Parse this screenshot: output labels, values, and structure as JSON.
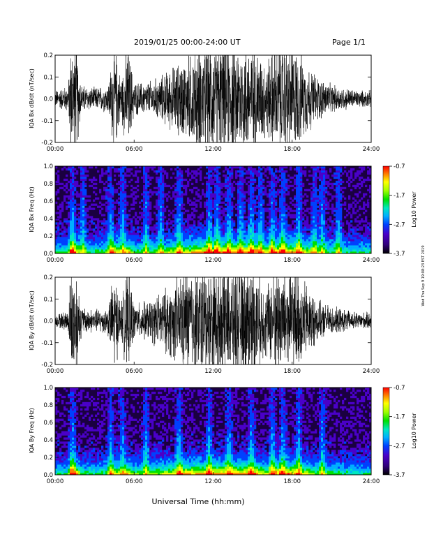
{
  "header": {
    "date_range": "2019/01/25  00:00-24:00 UT",
    "page": "Page 1/1"
  },
  "x_axis_title": "Universal Time (hh:mm)",
  "side_note": "Wed Thu Sep 9 19:08:23 EST 2019",
  "colors": {
    "colormap": [
      "#000000",
      "#30007a",
      "#4a00c8",
      "#0040ff",
      "#00b0ff",
      "#00e8c0",
      "#00e000",
      "#a0ff00",
      "#ffff00",
      "#ff8000",
      "#ff0000"
    ],
    "waveform": "#000000"
  },
  "chart_data": [
    {
      "type": "line",
      "name": "bx-waveform",
      "ylabel": "IQA Bx dB/dt (nT/sec)",
      "ylim": [
        -0.2,
        0.2
      ],
      "yticks": [
        "-0.2",
        "-0.1",
        "0.0",
        "0.1",
        "0.2"
      ],
      "xlim": [
        0,
        24
      ],
      "xticks": [
        "00:00",
        "06:00",
        "12:00",
        "18:00",
        "24:00"
      ],
      "envelope": {
        "hours": [
          0,
          1,
          1.2,
          1.6,
          2,
          3,
          4,
          4.5,
          5,
          5.5,
          6,
          7,
          8,
          9,
          10,
          11,
          12,
          13,
          14,
          15,
          16,
          17,
          18,
          19,
          20,
          21,
          22,
          23,
          24
        ],
        "amplitude": [
          0.03,
          0.05,
          0.2,
          0.2,
          0.05,
          0.04,
          0.05,
          0.2,
          0.07,
          0.2,
          0.06,
          0.06,
          0.08,
          0.12,
          0.15,
          0.2,
          0.2,
          0.2,
          0.2,
          0.2,
          0.14,
          0.2,
          0.2,
          0.13,
          0.08,
          0.05,
          0.04,
          0.03,
          0.03
        ]
      }
    },
    {
      "type": "heatmap",
      "name": "bx-spectrogram",
      "ylabel": "IQA Bx Freq (Hz)",
      "ylim": [
        0.0,
        1.0
      ],
      "yticks": [
        "0.0",
        "0.2",
        "0.4",
        "0.6",
        "0.8",
        "1.0"
      ],
      "xlim": [
        0,
        24
      ],
      "xticks": [
        "00:00",
        "06:00",
        "12:00",
        "18:00",
        "24:00"
      ],
      "colorbar": {
        "label": "Log10 Power",
        "ticks": [
          "-0.7",
          "-1.7",
          "-2.7",
          "-3.7"
        ],
        "range": [
          -3.7,
          -0.7
        ]
      },
      "bursts_hours": [
        1.3,
        2.1,
        4.2,
        5.1,
        6.9,
        8.0,
        9.4,
        11.7,
        12.3,
        13.2,
        14.1,
        14.9,
        15.6,
        16.5,
        17.3,
        18.5,
        19.7,
        20.3,
        21.5
      ]
    },
    {
      "type": "line",
      "name": "by-waveform",
      "ylabel": "IQA By dB/dt (nT/sec)",
      "ylim": [
        -0.2,
        0.2
      ],
      "yticks": [
        "-0.2",
        "-0.1",
        "0.0",
        "0.1",
        "0.2"
      ],
      "xlim": [
        0,
        24
      ],
      "xticks": [
        "00:00",
        "06:00",
        "12:00",
        "18:00",
        "24:00"
      ],
      "envelope": {
        "hours": [
          0,
          1,
          1.2,
          1.6,
          2,
          3,
          4,
          4.5,
          5,
          5.5,
          6,
          7,
          8,
          9,
          10,
          11,
          12,
          13,
          14,
          15,
          16,
          17,
          18,
          19,
          20,
          21,
          22,
          23,
          24
        ],
        "amplitude": [
          0.02,
          0.04,
          0.2,
          0.2,
          0.05,
          0.04,
          0.05,
          0.18,
          0.06,
          0.2,
          0.06,
          0.07,
          0.1,
          0.14,
          0.2,
          0.2,
          0.2,
          0.2,
          0.2,
          0.2,
          0.13,
          0.2,
          0.2,
          0.14,
          0.07,
          0.05,
          0.04,
          0.03,
          0.03
        ]
      }
    },
    {
      "type": "heatmap",
      "name": "by-spectrogram",
      "ylabel": "IQA By Freq (Hz)",
      "ylim": [
        0.0,
        1.0
      ],
      "yticks": [
        "0.0",
        "0.2",
        "0.4",
        "0.6",
        "0.8",
        "1.0"
      ],
      "xlim": [
        0,
        24
      ],
      "xticks": [
        "00:00",
        "06:00",
        "12:00",
        "18:00",
        "24:00"
      ],
      "colorbar": {
        "label": "Log10 Power",
        "ticks": [
          "-0.7",
          "-1.7",
          "-2.7",
          "-3.7"
        ],
        "range": [
          -3.7,
          -0.7
        ]
      },
      "bursts_hours": [
        1.3,
        4.2,
        5.1,
        6.9,
        9.4,
        11.7,
        13.2,
        14.9,
        16.5,
        17.3,
        18.5,
        20.3
      ]
    }
  ]
}
